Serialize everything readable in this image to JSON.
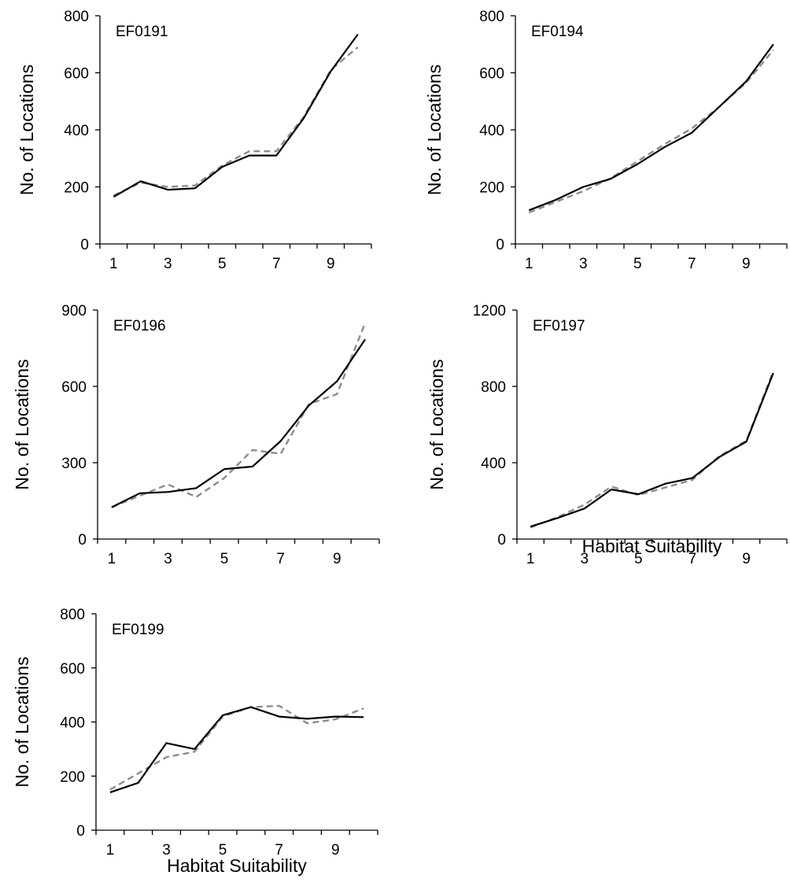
{
  "figure": {
    "shared_xlabel": "Habitat Suitability",
    "colors": {
      "observed": "#000000",
      "expected": "#8c8c8c"
    }
  },
  "chart_data": [
    {
      "type": "line",
      "title": "EF0191",
      "xlabel": "",
      "ylabel": "No. of Locations",
      "x": [
        1,
        2,
        3,
        4,
        5,
        6,
        7,
        8,
        9,
        10
      ],
      "xticks": [
        1,
        3,
        5,
        7,
        9
      ],
      "yticks": [
        0,
        200,
        400,
        600,
        800
      ],
      "xlim": [
        0.5,
        10.5
      ],
      "ylim": [
        0,
        800
      ],
      "series": [
        {
          "style": "solid",
          "values": [
            165,
            220,
            190,
            195,
            270,
            310,
            310,
            440,
            605,
            735
          ]
        },
        {
          "style": "dashed",
          "values": [
            170,
            215,
            200,
            205,
            275,
            325,
            325,
            445,
            610,
            690
          ]
        }
      ]
    },
    {
      "type": "line",
      "title": "EF0194",
      "xlabel": "",
      "ylabel": "No. of Locations",
      "x": [
        1,
        2,
        3,
        4,
        5,
        6,
        7,
        8,
        9,
        10
      ],
      "xticks": [
        1,
        3,
        5,
        7,
        9
      ],
      "yticks": [
        0,
        200,
        400,
        600,
        800
      ],
      "xlim": [
        0.5,
        10.5
      ],
      "ylim": [
        0,
        800
      ],
      "series": [
        {
          "style": "solid",
          "values": [
            118,
            155,
            200,
            228,
            280,
            340,
            390,
            480,
            570,
            700
          ]
        },
        {
          "style": "dashed",
          "values": [
            110,
            148,
            185,
            230,
            290,
            350,
            405,
            480,
            565,
            680
          ]
        }
      ]
    },
    {
      "type": "line",
      "title": "EF0196",
      "xlabel": "",
      "ylabel": "No. of Locations",
      "x": [
        1,
        2,
        3,
        4,
        5,
        6,
        7,
        8,
        9,
        10
      ],
      "xticks": [
        1,
        3,
        5,
        7,
        9
      ],
      "yticks": [
        0,
        300,
        600,
        900
      ],
      "xlim": [
        0.5,
        10.5
      ],
      "ylim": [
        0,
        900
      ],
      "series": [
        {
          "style": "solid",
          "values": [
            125,
            180,
            185,
            200,
            275,
            285,
            385,
            525,
            620,
            785
          ]
        },
        {
          "style": "dashed",
          "values": [
            125,
            170,
            215,
            165,
            240,
            350,
            335,
            530,
            570,
            850
          ]
        }
      ]
    },
    {
      "type": "line",
      "title": "EF0197",
      "xlabel": "Habitat Suitability",
      "ylabel": "No. of Locations",
      "x": [
        1,
        2,
        3,
        4,
        5,
        6,
        7,
        8,
        9,
        10
      ],
      "xticks": [
        1,
        3,
        5,
        7,
        9
      ],
      "yticks": [
        0,
        400,
        800,
        1200
      ],
      "xlim": [
        0.5,
        10.5
      ],
      "ylim": [
        0,
        1200
      ],
      "series": [
        {
          "style": "solid",
          "values": [
            65,
            110,
            160,
            260,
            235,
            290,
            320,
            430,
            510,
            870
          ]
        },
        {
          "style": "dashed",
          "values": [
            60,
            115,
            180,
            275,
            230,
            270,
            310,
            435,
            515,
            880
          ]
        }
      ]
    },
    {
      "type": "line",
      "title": "EF0199",
      "xlabel": "Habitat Suitability",
      "ylabel": "No. of Locations",
      "x": [
        1,
        2,
        3,
        4,
        5,
        6,
        7,
        8,
        9,
        10
      ],
      "xticks": [
        1,
        3,
        5,
        7,
        9
      ],
      "yticks": [
        0,
        200,
        400,
        600,
        800
      ],
      "xlim": [
        0.5,
        10.5
      ],
      "ylim": [
        0,
        800
      ],
      "series": [
        {
          "style": "solid",
          "values": [
            140,
            175,
            322,
            300,
            425,
            455,
            420,
            412,
            420,
            418
          ]
        },
        {
          "style": "dashed",
          "values": [
            150,
            210,
            270,
            290,
            420,
            455,
            460,
            395,
            410,
            450
          ]
        }
      ]
    }
  ]
}
